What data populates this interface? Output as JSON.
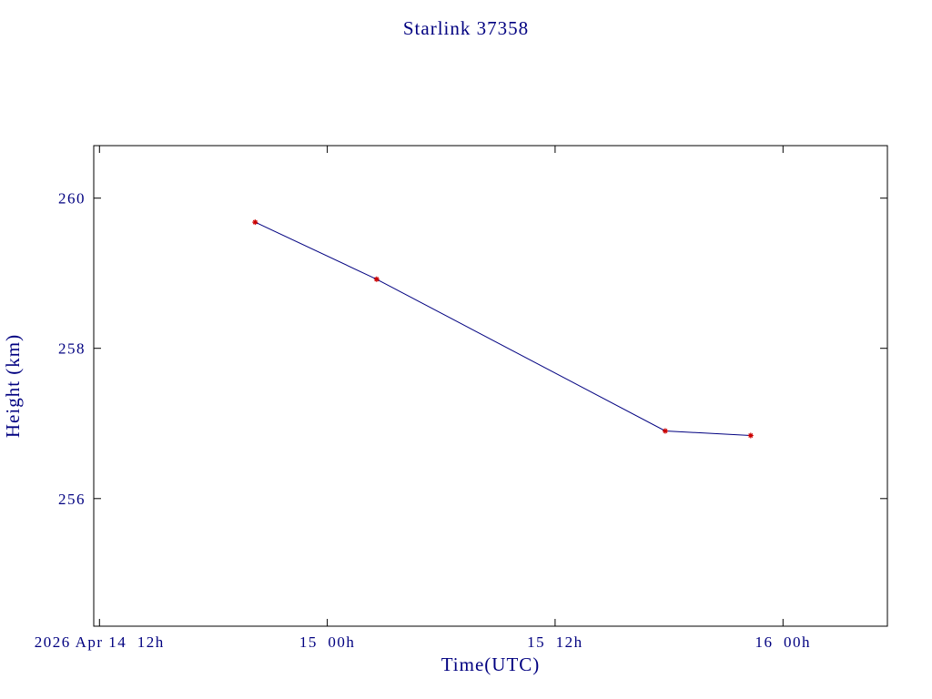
{
  "chart_data": {
    "type": "line",
    "title": "Starlink 37358",
    "xlabel": "Time(UTC)",
    "ylabel": "Height (km)",
    "x_unit": "hours after 2026 Apr 14 00:00 UTC",
    "x": [
      20.2,
      26.6,
      41.8,
      46.3
    ],
    "y": [
      259.68,
      258.92,
      256.9,
      256.84
    ],
    "xlim": [
      11.7,
      53.5
    ],
    "ylim": [
      254.3,
      260.7
    ],
    "x_ticks": [
      {
        "value": 12,
        "label": "2026 Apr 14  12h"
      },
      {
        "value": 24,
        "label": "15  00h"
      },
      {
        "value": 36,
        "label": "15  12h"
      },
      {
        "value": 48,
        "label": "16  00h"
      }
    ],
    "y_ticks": [
      {
        "value": 256,
        "label": "256"
      },
      {
        "value": 258,
        "label": "258"
      },
      {
        "value": 260,
        "label": "260"
      }
    ],
    "grid": false,
    "legend": "none",
    "line_color": "#000080",
    "marker_color": "#cc0000",
    "frame_color": "#000000",
    "text_color": "#000080"
  }
}
